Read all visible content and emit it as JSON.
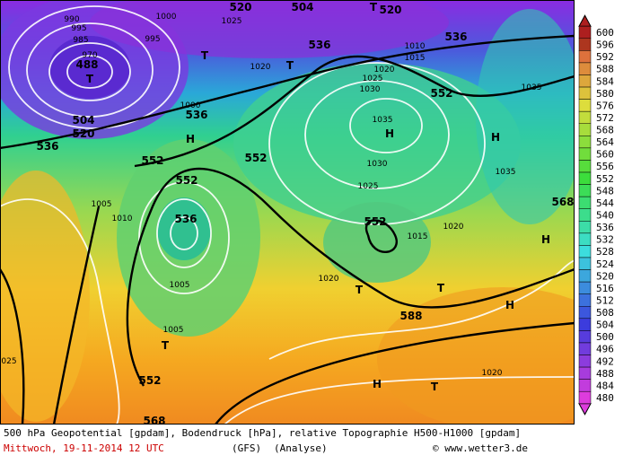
{
  "map": {
    "labels": [
      "990",
      "1000",
      "1025",
      "520",
      "504",
      "T",
      "520",
      "995",
      "995",
      "985",
      "536",
      "1010",
      "536",
      "970",
      "T",
      "1020",
      "T",
      "1015",
      "488",
      "T",
      "1020",
      "1025",
      "552",
      "1035",
      "1030",
      "1000",
      "536",
      "504",
      "1035",
      "520",
      "H",
      "H",
      "H",
      "536",
      "552",
      "552",
      "1030",
      "1035",
      "552",
      "1025",
      "1005",
      "536",
      "1010",
      "552",
      "1020",
      "568",
      "1015",
      "H",
      "1020",
      "T",
      "T",
      "1005",
      "H",
      "588",
      "1005",
      "T",
      "025",
      "1020",
      "552",
      "H",
      "T",
      "568"
    ]
  },
  "colorbar": {
    "ticks": [
      600,
      596,
      592,
      588,
      584,
      580,
      576,
      572,
      568,
      564,
      560,
      556,
      552,
      548,
      544,
      540,
      536,
      532,
      528,
      524,
      520,
      516,
      512,
      508,
      504,
      500,
      496,
      492,
      488,
      484,
      480
    ]
  },
  "caption": {
    "title": "500 hPa Geopotential [gpdam], Bodendruck [hPa], relative Topographie H500-H1000 [gpdam]",
    "date": "Mittwoch, 19-11-2014  12 UTC",
    "model": "(GFS)",
    "type": "(Analyse)",
    "source": "© www.wetter3.de"
  }
}
